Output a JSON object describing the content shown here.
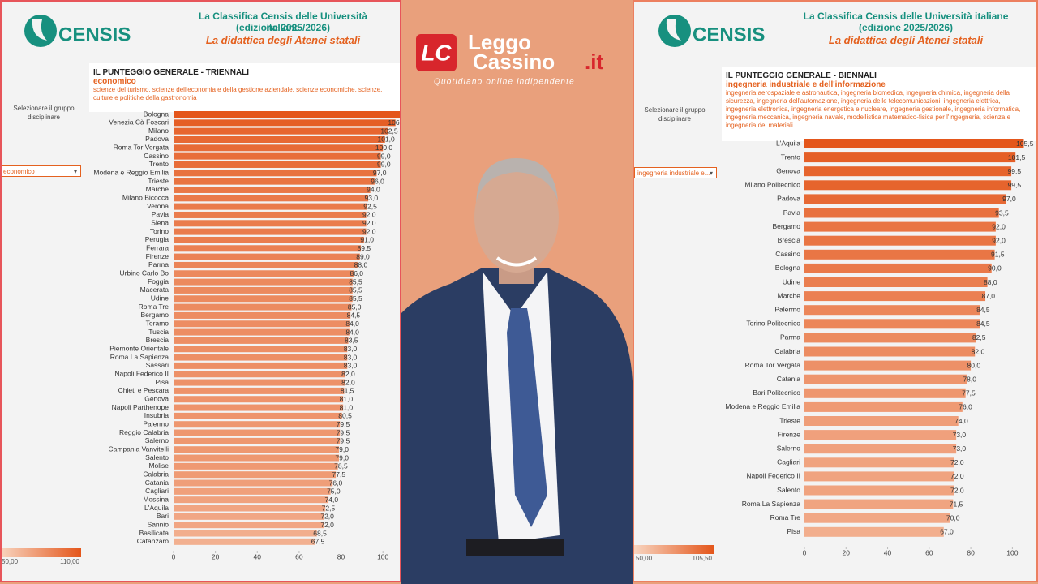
{
  "site": {
    "mark": "LC",
    "word1": "Leggo",
    "word2": "Cassino",
    "suffix": ".it",
    "tagline": "Quotidiano online indipendente"
  },
  "chart_data": [
    {
      "type": "bar",
      "orientation": "horizontal",
      "brand": "CENSIS",
      "heading": "La Classifica Censis delle Università italiane",
      "edition": "(edizione 2025/2026)",
      "tagline": "La didattica degli Atenei statali",
      "title": "IL PUNTEGGIO GENERALE - TRIENNALI",
      "subtitle": "economico",
      "description": "scienze del turismo, scienze dell'economia e della gestione aziendale, scienze economiche, scienze, culture e politiche della gastronomia",
      "selector_label": "Selezionare il gruppo disciplinare",
      "selector_value": "economico",
      "categories": [
        "Bologna",
        "Venezia Cà Foscari",
        "Milano",
        "Padova",
        "Roma Tor Vergata",
        "Cassino",
        "Trento",
        "Modena e Reggio Emilia",
        "Trieste",
        "Marche",
        "Milano Bicocca",
        "Verona",
        "Pavia",
        "Siena",
        "Torino",
        "Perugia",
        "Ferrara",
        "Firenze",
        "Parma",
        "Urbino Carlo Bo",
        "Foggia",
        "Macerata",
        "Udine",
        "Roma Tre",
        "Bergamo",
        "Teramo",
        "Tuscia",
        "Brescia",
        "Piemonte Orientale",
        "Roma La Sapienza",
        "Sassari",
        "Napoli Federico II",
        "Pisa",
        "Chieti e Pescara",
        "Genova",
        "Napoli Parthenope",
        "Insubria",
        "Palermo",
        "Reggio Calabria",
        "Salerno",
        "Campania Vanvitelli",
        "Salento",
        "Molise",
        "Calabria",
        "Catania",
        "Cagliari",
        "Messina",
        "L'Aquila",
        "Bari",
        "Sannio",
        "Basilicata",
        "Catanzaro"
      ],
      "values": [
        110,
        106,
        102.5,
        101,
        100,
        99,
        99,
        97,
        96,
        94,
        93,
        92.5,
        92,
        92,
        92,
        91,
        89.5,
        89,
        88,
        86,
        85.5,
        85.5,
        85.5,
        85,
        84.5,
        84,
        84,
        83.5,
        83,
        83,
        83,
        82,
        82,
        81.5,
        81,
        81,
        80.5,
        79.5,
        79.5,
        79.5,
        79,
        79,
        78.5,
        77.5,
        76,
        75,
        74,
        72.5,
        72,
        72,
        68.5,
        67.5
      ],
      "value_labels": [
        null,
        "106,0",
        "102,5",
        "101,0",
        "100,0",
        "99,0",
        "99,0",
        "97,0",
        "96,0",
        "94,0",
        "93,0",
        "92,5",
        "92,0",
        "92,0",
        "92,0",
        "91,0",
        "89,5",
        "89,0",
        "88,0",
        "86,0",
        "85,5",
        "85,5",
        "85,5",
        "85,0",
        "84,5",
        "84,0",
        "84,0",
        "83,5",
        "83,0",
        "83,0",
        "83,0",
        "82,0",
        "82,0",
        "81,5",
        "81,0",
        "81,0",
        "80,5",
        "79,5",
        "79,5",
        "79,5",
        "79,0",
        "79,0",
        "78,5",
        "77,5",
        "76,0",
        "75,0",
        "74,0",
        "72,5",
        "72,0",
        "72,0",
        "68,5",
        "67,5"
      ],
      "xlim": [
        0,
        110
      ],
      "xticks": [
        0,
        20,
        40,
        60,
        80,
        100
      ],
      "color_scale": {
        "min": {
          "value": 50,
          "label": "50,00"
        },
        "max": {
          "value": 110,
          "label": "110,00"
        },
        "colors": [
          "#f8d5c0",
          "#e4561b"
        ]
      }
    },
    {
      "type": "bar",
      "orientation": "horizontal",
      "brand": "CENSIS",
      "heading": "La Classifica Censis delle Università italiane",
      "edition": "(edizione 2025/2026)",
      "tagline": "La didattica degli Atenei statali",
      "title": "IL PUNTEGGIO GENERALE - BIENNALI",
      "subtitle": "ingegneria industriale e dell'informazione",
      "description": "ingegneria aerospaziale e astronautica, ingegneria biomedica, ingegneria chimica, ingegneria della sicurezza, ingegneria dell'automazione, ingegneria delle telecomunicazioni, ingegneria elettrica, ingegneria elettronica, ingegneria energetica e nucleare, ingegneria gestionale, ingegneria informatica, ingegneria meccanica, ingegneria navale, modellistica matematico-fisica per l'ingegneria, scienza e ingegneria dei materiali",
      "selector_label": "Selezionare il gruppo disciplinare",
      "selector_value": "ingegneria industriale e...",
      "categories": [
        "L'Aquila",
        "Trento",
        "Genova",
        "Milano Politecnico",
        "Padova",
        "Pavia",
        "Bergamo",
        "Brescia",
        "Cassino",
        "Bologna",
        "Udine",
        "Marche",
        "Palermo",
        "Torino Politecnico",
        "Parma",
        "Calabria",
        "Roma Tor Vergata",
        "Catania",
        "Bari Politecnico",
        "Modena e Reggio Emilia",
        "Trieste",
        "Firenze",
        "Salerno",
        "Cagliari",
        "Napoli Federico II",
        "Salento",
        "Roma La Sapienza",
        "Roma Tre",
        "Pisa"
      ],
      "values": [
        105.5,
        101.5,
        99.5,
        99.5,
        97,
        93.5,
        92,
        92,
        91.5,
        90,
        88,
        87,
        84.5,
        84.5,
        82.5,
        82,
        80,
        78,
        77.5,
        76,
        74,
        73,
        73,
        72,
        72,
        72,
        71.5,
        70,
        67
      ],
      "value_labels": [
        "105,5",
        "101,5",
        "99,5",
        "99,5",
        "97,0",
        "93,5",
        "92,0",
        "92,0",
        "91,5",
        "90,0",
        "88,0",
        "87,0",
        "84,5",
        "84,5",
        "82,5",
        "82,0",
        "80,0",
        "78,0",
        "77,5",
        "76,0",
        "74,0",
        "73,0",
        "73,0",
        "72,0",
        "72,0",
        "72,0",
        "71,5",
        "70,0",
        "67,0"
      ],
      "xlim": [
        0,
        110
      ],
      "xticks": [
        0,
        20,
        40,
        60,
        80,
        100
      ],
      "color_scale": {
        "min": {
          "value": 50,
          "label": "50,00"
        },
        "max": {
          "value": 105.5,
          "label": "105,50"
        },
        "colors": [
          "#f8d5c0",
          "#e4561b"
        ]
      }
    }
  ]
}
